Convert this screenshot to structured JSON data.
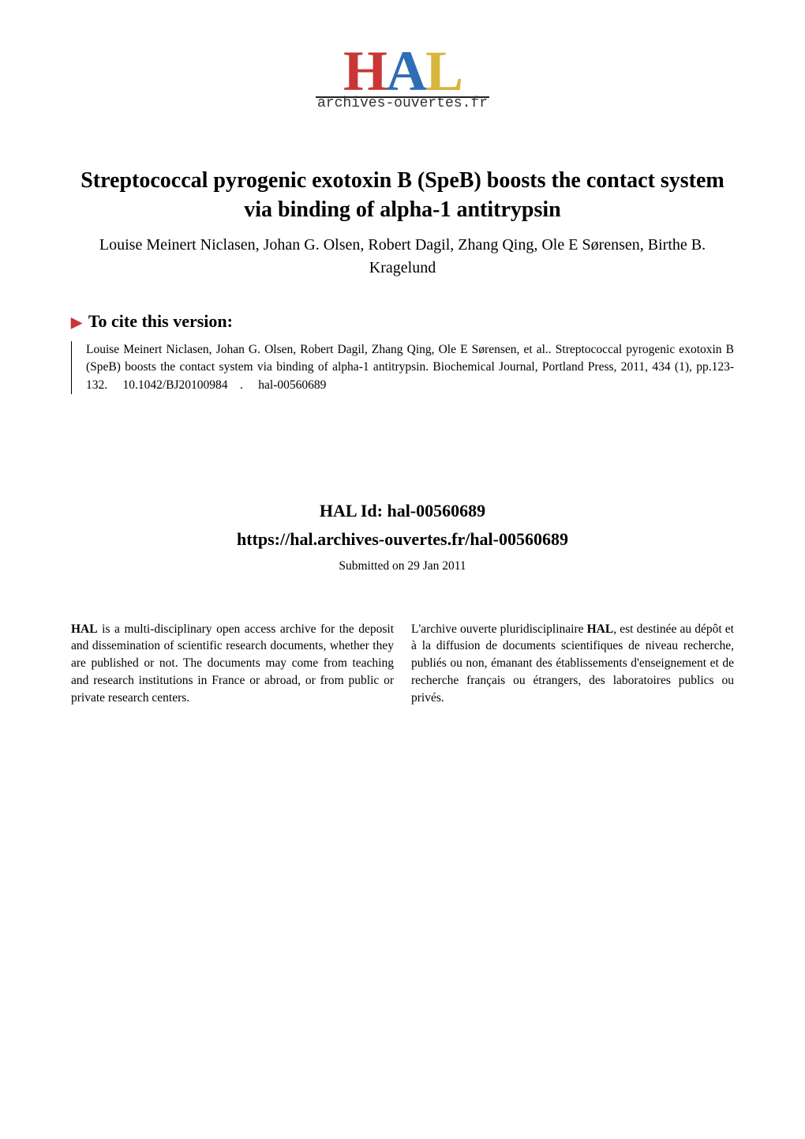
{
  "logo": {
    "letters": {
      "h": "H",
      "a": "A",
      "l": "L"
    },
    "subtitle": "archives-ouvertes.fr",
    "colors": {
      "h": "#c93636",
      "a": "#2f6db5",
      "l": "#d8b63e"
    }
  },
  "title": "Streptococcal pyrogenic exotoxin B (SpeB) boosts the contact system via binding of alpha-1 antitrypsin",
  "authors": "Louise Meinert Niclasen, Johan G. Olsen, Robert Dagil, Zhang Qing, Ole E Sørensen, Birthe B. Kragelund",
  "cite": {
    "heading": "To cite this version:",
    "body": "Louise Meinert Niclasen, Johan G. Olsen, Robert Dagil, Zhang Qing, Ole E Sørensen, et al.. Streptococcal pyrogenic exotoxin B (SpeB) boosts the contact system via binding of alpha-1 antitrypsin. Biochemical Journal, Portland Press, 2011, 434 (1), pp.123-132.  10.1042/BJ20100984 .  hal-00560689 "
  },
  "hal_id": {
    "label": "HAL Id:",
    "id": "hal-00560689",
    "url": "https://hal.archives-ouvertes.fr/hal-00560689"
  },
  "submitted": "Submitted on 29 Jan 2011",
  "description": {
    "left": "HAL is a multi-disciplinary open access archive for the deposit and dissemination of scientific research documents, whether they are published or not. The documents may come from teaching and research institutions in France or abroad, or from public or private research centers.",
    "right": "L'archive ouverte pluridisciplinaire HAL, est destinée au dépôt et à la diffusion de documents scientifiques de niveau recherche, publiés ou non, émanant des établissements d'enseignement et de recherche français ou étrangers, des laboratoires publics ou privés."
  },
  "typography": {
    "title_fontsize": 28,
    "authors_fontsize": 20,
    "cite_heading_fontsize": 22,
    "body_fontsize": 15.5,
    "hal_id_fontsize": 22
  },
  "colors": {
    "background": "#ffffff",
    "text": "#000000",
    "marker": "#c93636"
  }
}
